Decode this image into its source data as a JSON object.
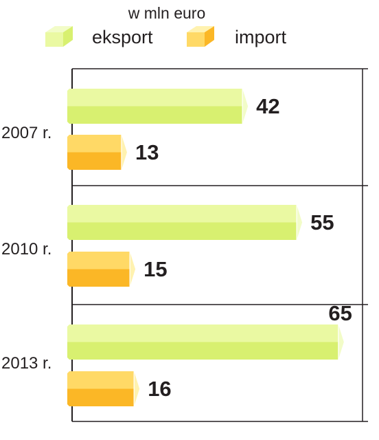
{
  "colors": {
    "export_top": "#eaf9a2",
    "export_bottom": "#d8f070",
    "export_edge": "#f2fcc8",
    "import_top": "#ffd966",
    "import_bottom": "#fbb726",
    "import_edge": "#fff2b0",
    "axis": "#231f20"
  },
  "legend": {
    "unit": "w mln euro",
    "export_label": "eksport",
    "import_label": "import"
  },
  "chart_data": {
    "type": "bar",
    "orientation": "horizontal",
    "unit": "w mln euro",
    "categories": [
      "2007 r.",
      "2010 r.",
      "2013 r."
    ],
    "series": [
      {
        "name": "eksport",
        "values": [
          42,
          55,
          65
        ]
      },
      {
        "name": "import",
        "values": [
          13,
          15,
          16
        ]
      }
    ],
    "xlim": [
      0,
      67
    ],
    "grid": true,
    "legend_position": "top"
  }
}
